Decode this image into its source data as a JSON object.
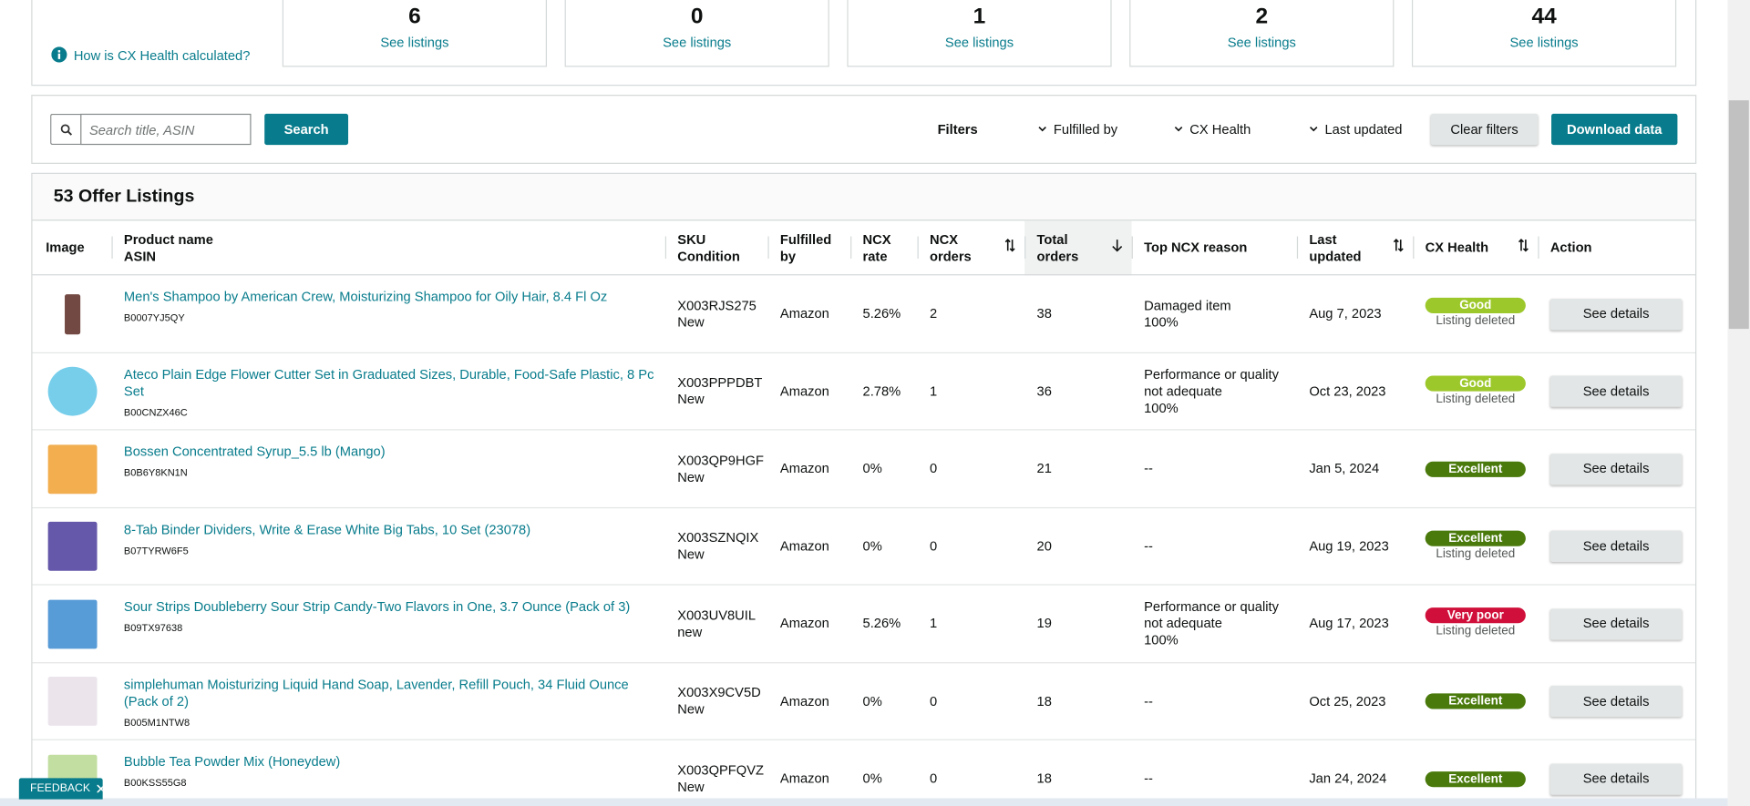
{
  "summary": {
    "help_link": "How is CX Health calculated?",
    "cards": [
      {
        "count": 6,
        "link": "See listings"
      },
      {
        "count": 0,
        "link": "See listings"
      },
      {
        "count": 1,
        "link": "See listings"
      },
      {
        "count": 2,
        "link": "See listings"
      },
      {
        "count": 44,
        "link": "See listings"
      }
    ]
  },
  "toolbar": {
    "search_placeholder": "Search title, ASIN",
    "search_button": "Search",
    "filters_label": "Filters",
    "filters": [
      "Fulfilled by",
      "CX Health",
      "Last updated"
    ],
    "clear_button": "Clear filters",
    "download_button": "Download data"
  },
  "table": {
    "title": "53 Offer Listings",
    "headers": [
      {
        "label": "Image"
      },
      {
        "label": "Product name",
        "sub": "ASIN"
      },
      {
        "label": "SKU",
        "sub": "Condition"
      },
      {
        "label": "Fulfilled by"
      },
      {
        "label": "NCX rate"
      },
      {
        "label": "NCX orders",
        "sort": "both"
      },
      {
        "label": "Total orders",
        "sort": "desc"
      },
      {
        "label": "Top NCX reason"
      },
      {
        "label": "Last updated",
        "sort": "both"
      },
      {
        "label": "CX Health",
        "sort": "both"
      },
      {
        "label": "Action"
      }
    ],
    "rows": [
      {
        "product": "Men's Shampoo by American Crew, Moisturizing Shampoo for Oily Hair, 8.4 Fl Oz",
        "asin": "B0007YJ5QY",
        "sku": "X003RJS275",
        "condition": "New",
        "fulfilled_by": "Amazon",
        "ncx_rate": "5.26%",
        "ncx_orders": 2,
        "total_orders": 38,
        "reason": [
          "Damaged item",
          "100%"
        ],
        "last_updated": "Aug 7, 2023",
        "health": "Good",
        "health_color": "#9dc82c",
        "status": "Listing deleted",
        "action": "See details"
      },
      {
        "product": "Ateco Plain Edge Flower Cutter Set in Graduated Sizes, Durable, Food-Safe Plastic, 8 Pc Set",
        "asin": "B00CNZX46C",
        "sku": "X003PPPDBT",
        "condition": "New",
        "fulfilled_by": "Amazon",
        "ncx_rate": "2.78%",
        "ncx_orders": 1,
        "total_orders": 36,
        "reason": [
          "Performance or quality not adequate",
          "100%"
        ],
        "last_updated": "Oct 23, 2023",
        "health": "Good",
        "health_color": "#9dc82c",
        "status": "Listing deleted",
        "action": "See details"
      },
      {
        "product": "Bossen Concentrated Syrup_5.5 lb (Mango)",
        "asin": "B0B6Y8KN1N",
        "sku": "X003QP9HGF",
        "condition": "New",
        "fulfilled_by": "Amazon",
        "ncx_rate": "0%",
        "ncx_orders": 0,
        "total_orders": 21,
        "reason": [
          "--"
        ],
        "last_updated": "Jan 5, 2024",
        "health": "Excellent",
        "health_color": "#4a7a0c",
        "action": "See details"
      },
      {
        "product": "8-Tab Binder Dividers, Write & Erase White Big Tabs, 10 Set (23078)",
        "asin": "B07TYRW6F5",
        "sku": "X003SZNQIX",
        "condition": "New",
        "fulfilled_by": "Amazon",
        "ncx_rate": "0%",
        "ncx_orders": 0,
        "total_orders": 20,
        "reason": [
          "--"
        ],
        "last_updated": "Aug 19, 2023",
        "health": "Excellent",
        "health_color": "#4a7a0c",
        "status": "Listing deleted",
        "action": "See details"
      },
      {
        "product": "Sour Strips Doubleberry Sour Strip Candy-Two Flavors in One, 3.7 Ounce (Pack of 3)",
        "asin": "B09TX97638",
        "sku": "X003UV8UIL",
        "condition": "new",
        "fulfilled_by": "Amazon",
        "ncx_rate": "5.26%",
        "ncx_orders": 1,
        "total_orders": 19,
        "reason": [
          "Performance or quality not adequate",
          "100%"
        ],
        "last_updated": "Aug 17, 2023",
        "health": "Very poor",
        "health_color": "#d0103a",
        "status": "Listing deleted",
        "action": "See details"
      },
      {
        "product": "simplehuman Moisturizing Liquid Hand Soap, Lavender, Refill Pouch, 34 Fluid Ounce (Pack of 2)",
        "asin": "B005M1NTW8",
        "sku": "X003X9CV5D",
        "condition": "New",
        "fulfilled_by": "Amazon",
        "ncx_rate": "0%",
        "ncx_orders": 0,
        "total_orders": 18,
        "reason": [
          "--"
        ],
        "last_updated": "Oct 25, 2023",
        "health": "Excellent",
        "health_color": "#4a7a0c",
        "action": "See details"
      },
      {
        "product": "Bubble Tea Powder Mix (Honeydew)",
        "asin": "B00KSS55G8",
        "sku": "X003QPFQVZ",
        "condition": "New",
        "fulfilled_by": "Amazon",
        "ncx_rate": "0%",
        "ncx_orders": 0,
        "total_orders": 18,
        "reason": [
          "--"
        ],
        "last_updated": "Jan 24, 2024",
        "health": "Excellent",
        "health_color": "#4a7a0c",
        "action": "See details"
      }
    ]
  },
  "feedback": "FEEDBACK"
}
